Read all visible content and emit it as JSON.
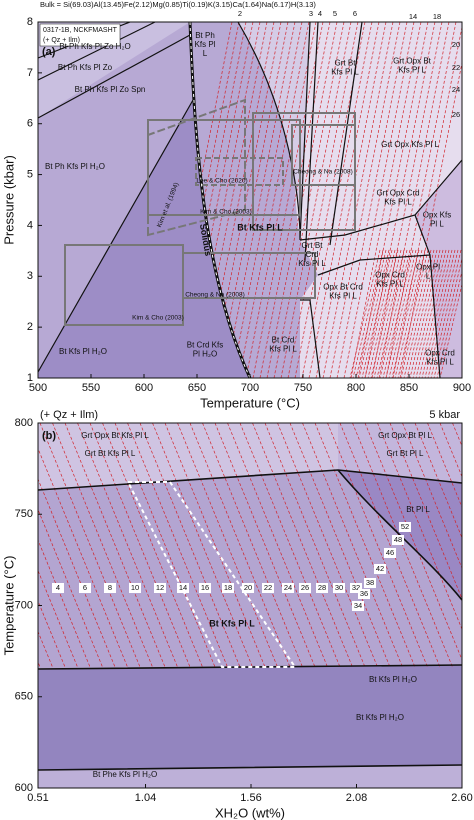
{
  "chart_data": [
    {
      "type": "phase-diagram",
      "header": "Bulk = Si(69.03)Al(13.45)Fe(2.12)Mg(0.85)Ti(0.19)K(3.15)Ca(1.64)Na(6.17)H(3.13)",
      "sample_box": [
        "0317-1B, NCKFMASHT",
        "(+ Qz + Ilm)"
      ],
      "panel_label": "(a)",
      "xlabel": "Temperature (°C)",
      "ylabel": "Pressure (kbar)",
      "xlim": [
        500,
        900
      ],
      "xticks": [
        500,
        550,
        600,
        650,
        700,
        750,
        800,
        850,
        900
      ],
      "ylim": [
        1,
        8
      ],
      "yticks": [
        1,
        2,
        3,
        4,
        5,
        6,
        7,
        8
      ],
      "fields": [
        [
          "Bt Ph Kfs Pl Zo H₂O"
        ],
        [
          "Bt Ph Kfs Pl Zo"
        ],
        [
          "Bt Ph Kfs Pl Zo Spn"
        ],
        [
          "Bt Ph Kfs Pl H₂O"
        ],
        [
          "Bt Ph",
          "Kfs Pl",
          "L"
        ],
        [
          "Grt Bt",
          "Kfs Pl L"
        ],
        [
          "Grt Opx Bt",
          "Kfs Pl L"
        ],
        [
          "Grt Opx Kfs Pl L"
        ],
        [
          "Grt Opx Crd",
          "Kfs Pl L"
        ],
        [
          "Bt Kfs Pl L"
        ],
        [
          "Opx Kfs",
          "Pl L"
        ],
        [
          "Grt Bt",
          "Crd",
          "Kfs Pl L"
        ],
        [
          "Opx Crd",
          "Kfs Pl L"
        ],
        [
          "Opx Bt Crd",
          "Kfs Pl L"
        ],
        [
          "Opx Pl",
          "L"
        ],
        [
          "Bt Kfs Pl H₂O"
        ],
        [
          "Bt Crd Kfs",
          "Pl H₂O"
        ],
        [
          "Bt Crd",
          "Kfs Pl L"
        ],
        [
          "Opx Crd",
          "Kfs Pl L"
        ]
      ],
      "studies": [
        "Lee & Cho (2020)",
        "Cheong & Na (2008)",
        "Kim & Cho (2003)",
        "Kim et al. (1994)",
        "Cheong & Na (2008)",
        "Kim & Cho (2003)"
      ],
      "solidus_label": "Solidus",
      "isopleth_labels": [
        2,
        3,
        4,
        5,
        6,
        14,
        18,
        20,
        22,
        24,
        26
      ]
    },
    {
      "type": "phase-diagram",
      "panel_label": "(b)",
      "assemblage_note": "(+ Qz + Ilm)",
      "pressure_note": "5 kbar",
      "xlabel": "XH₂O (wt%)",
      "ylabel": "Temperature (°C)",
      "xlim": [
        0.51,
        2.6
      ],
      "xticks": [
        0.51,
        1.04,
        1.56,
        2.08,
        {
          "value": 2.6,
          "label": "2.60"
        }
      ],
      "ylim": [
        600,
        800
      ],
      "yticks": [
        600,
        650,
        700,
        750,
        800
      ],
      "fields": [
        [
          "Grt Opx Bt Kfs Pl L"
        ],
        [
          "Grt Bt Kfs Pl L"
        ],
        [
          "Grt Opx Bt Pl L"
        ],
        [
          "Grt Bt Pl L"
        ],
        [
          "Bt Pl L"
        ],
        [
          "Bt Kfs Pl L"
        ],
        [
          "Bt Kfs Pl H₂O"
        ],
        [
          "Bt Kfs Pl H₂O"
        ],
        [
          "Bt Phe Kfs Pl H₂O"
        ]
      ],
      "isopleth_labels": [
        4,
        6,
        8,
        10,
        12,
        14,
        16,
        18,
        20,
        22,
        24,
        26,
        28,
        30,
        32,
        34,
        36,
        38,
        42,
        46,
        48,
        52
      ]
    }
  ]
}
